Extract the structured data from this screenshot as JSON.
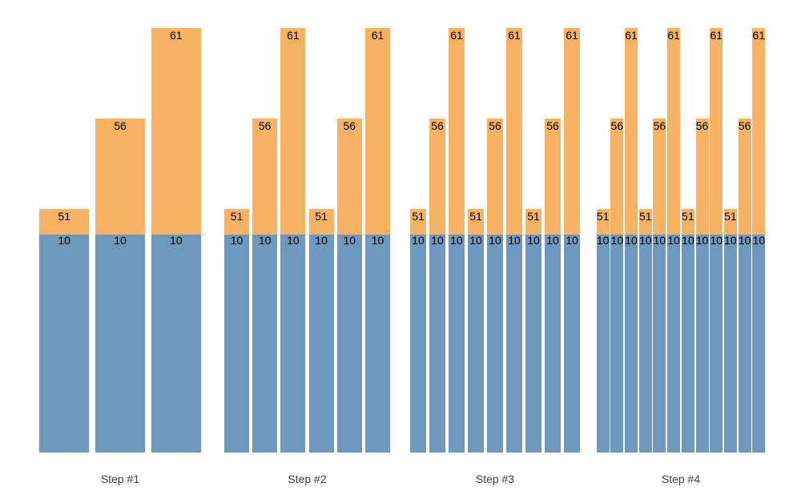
{
  "chart_data": {
    "type": "bar",
    "variant": "stacked",
    "title": "",
    "xlabel": "",
    "ylabel": "",
    "legend": "none",
    "grid": false,
    "axes_visible": false,
    "categories": [
      "Step #1",
      "Step #2",
      "Step #3",
      "Step #4"
    ],
    "series": [
      {
        "name": "base-segment",
        "color": "#6E98BE"
      },
      {
        "name": "top-segment",
        "color": "#F8B266"
      }
    ],
    "label_color": "#000000",
    "axis_label_color": "#3F3F3F",
    "groups": [
      {
        "label": "Step #1",
        "top_values": [
          51,
          56,
          61
        ],
        "base_values": [
          10,
          10,
          10
        ]
      },
      {
        "label": "Step #2",
        "top_values": [
          51,
          56,
          61,
          51,
          56,
          61
        ],
        "base_values": [
          10,
          10,
          10,
          10,
          10,
          10
        ]
      },
      {
        "label": "Step #3",
        "top_values": [
          51,
          56,
          61,
          51,
          56,
          61,
          51,
          56,
          61
        ],
        "base_values": [
          10,
          10,
          10,
          10,
          10,
          10,
          10,
          10,
          10
        ]
      },
      {
        "label": "Step #4",
        "top_values": [
          51,
          56,
          61,
          51,
          56,
          61,
          51,
          56,
          61,
          51,
          56,
          61
        ],
        "base_values": [
          10,
          10,
          10,
          10,
          10,
          10,
          10,
          10,
          10,
          10,
          10,
          10
        ]
      }
    ]
  }
}
